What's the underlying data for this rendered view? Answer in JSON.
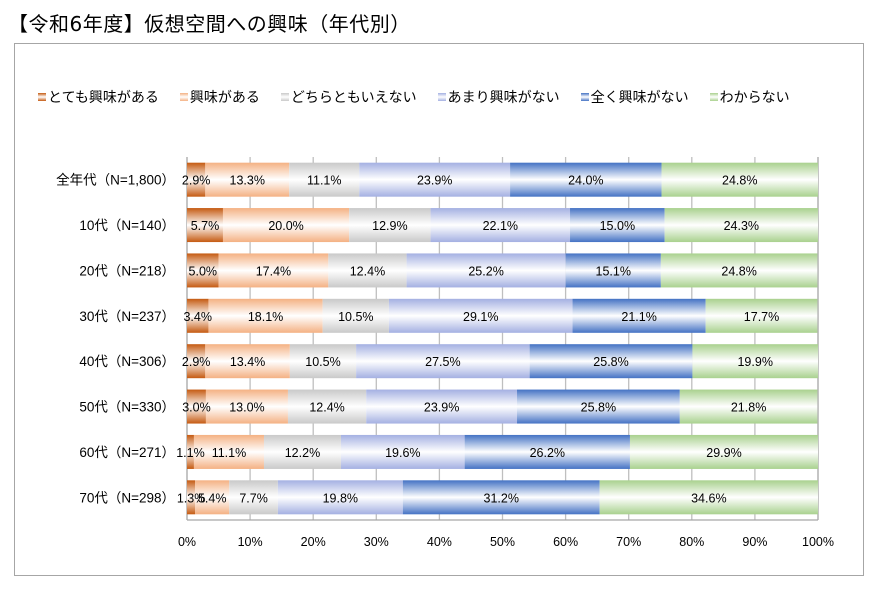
{
  "title": "【令和6年度】仮想空間への興味（年代別）",
  "chart_data": {
    "type": "bar",
    "orientation": "horizontal",
    "stacked": true,
    "percent_stacked": true,
    "title": "【令和6年度】仮想空間への興味（年代別）",
    "xlabel": "",
    "ylabel": "",
    "xlim": [
      0,
      100
    ],
    "x_ticks": [
      "0%",
      "10%",
      "20%",
      "30%",
      "40%",
      "50%",
      "60%",
      "70%",
      "80%",
      "90%",
      "100%"
    ],
    "grid": true,
    "legend_position": "top",
    "categories": [
      "全年代（N=1,800）",
      "10代（N=140）",
      "20代（N=218）",
      "30代（N=237）",
      "40代（N=306）",
      "50代（N=330）",
      "60代（N=271）",
      "70代（N=298）"
    ],
    "series": [
      {
        "name": "とても興味がある",
        "color": "#c55a11",
        "values": [
          2.9,
          5.7,
          5.0,
          3.4,
          2.9,
          3.0,
          1.1,
          1.3
        ],
        "labels": [
          "2.9%",
          "5.7%",
          "5.0%",
          "3.4%",
          "2.9%",
          "3.0%",
          "1.1%",
          "1.3%"
        ]
      },
      {
        "name": "興味がある",
        "color": "#f4b183",
        "values": [
          13.3,
          20.0,
          17.4,
          18.1,
          13.4,
          13.0,
          11.1,
          5.4
        ],
        "labels": [
          "13.3%",
          "20.0%",
          "17.4%",
          "18.1%",
          "13.4%",
          "13.0%",
          "11.1%",
          "5.4%"
        ]
      },
      {
        "name": "どちらともいえない",
        "color": "#c9c9c9",
        "values": [
          11.1,
          12.9,
          12.4,
          10.5,
          10.5,
          12.4,
          12.2,
          7.7
        ],
        "labels": [
          "11.1%",
          "12.9%",
          "12.4%",
          "10.5%",
          "10.5%",
          "12.4%",
          "12.2%",
          "7.7%"
        ]
      },
      {
        "name": "あまり興味がない",
        "color": "#a4b0e2",
        "values": [
          23.9,
          22.1,
          25.2,
          29.1,
          27.5,
          23.9,
          19.6,
          19.8
        ],
        "labels": [
          "23.9%",
          "22.1%",
          "25.2%",
          "29.1%",
          "27.5%",
          "23.9%",
          "19.6%",
          "19.8%"
        ]
      },
      {
        "name": "全く興味がない",
        "color": "#4472c4",
        "values": [
          24.0,
          15.0,
          15.1,
          21.1,
          25.8,
          25.8,
          26.2,
          31.2
        ],
        "labels": [
          "24.0%",
          "15.0%",
          "15.1%",
          "21.1%",
          "25.8%",
          "25.8%",
          "26.2%",
          "31.2%"
        ]
      },
      {
        "name": "わからない",
        "color": "#a9d18e",
        "values": [
          24.8,
          24.3,
          24.8,
          17.7,
          19.9,
          21.8,
          29.9,
          34.6
        ],
        "labels": [
          "24.8%",
          "24.3%",
          "24.8%",
          "17.7%",
          "19.9%",
          "21.8%",
          "29.9%",
          "34.6%"
        ]
      }
    ]
  }
}
